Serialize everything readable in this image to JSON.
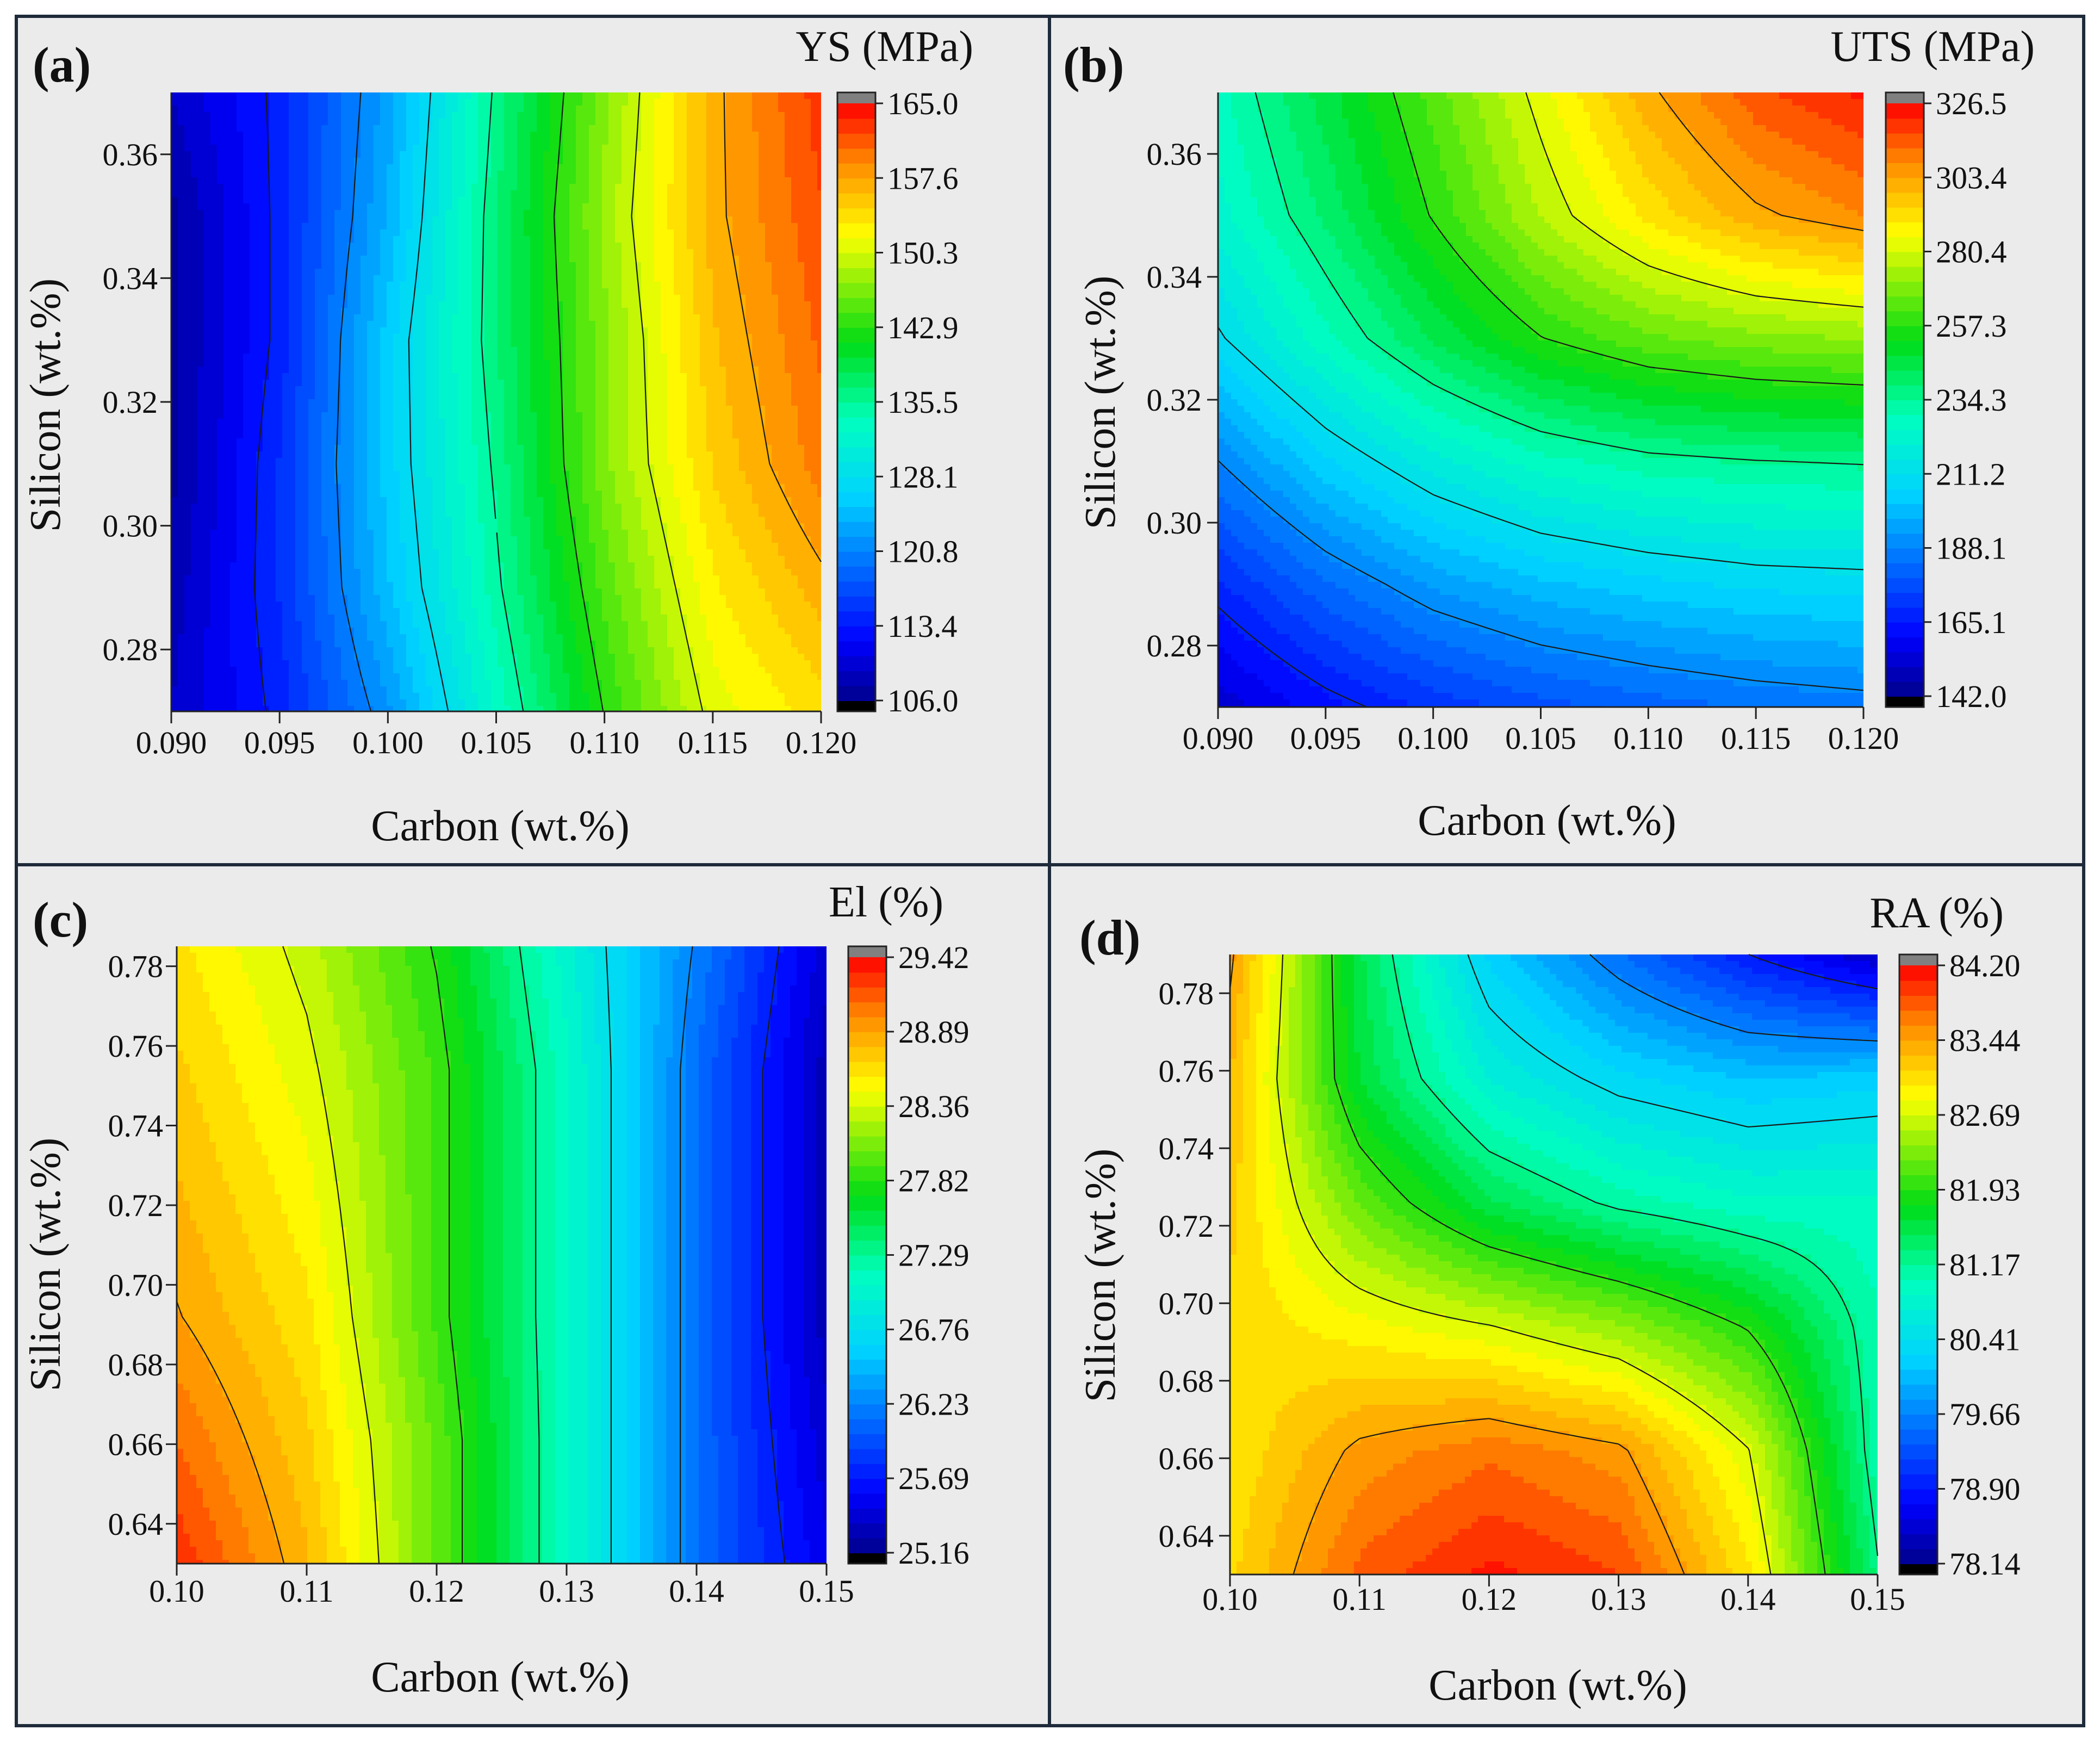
{
  "figure": {
    "panels": [
      {
        "id": "a",
        "label": "(a)",
        "title": "YS (MPa)",
        "xlabel": "Carbon (wt.%)",
        "ylabel": "Silicon (wt.%)",
        "x_ticks": [
          "0.090",
          "0.095",
          "0.100",
          "0.105",
          "0.110",
          "0.115",
          "0.120"
        ],
        "y_ticks": [
          "0.28",
          "0.30",
          "0.32",
          "0.34",
          "0.36"
        ],
        "colorbar_ticks": [
          "106.0",
          "113.4",
          "120.8",
          "128.1",
          "135.5",
          "142.9",
          "150.3",
          "157.6",
          "165.0"
        ]
      },
      {
        "id": "b",
        "label": "(b)",
        "title": "UTS (MPa)",
        "xlabel": "Carbon (wt.%)",
        "ylabel": "Silicon (wt.%)",
        "x_ticks": [
          "0.090",
          "0.095",
          "0.100",
          "0.105",
          "0.110",
          "0.115",
          "0.120"
        ],
        "y_ticks": [
          "0.28",
          "0.30",
          "0.32",
          "0.34",
          "0.36"
        ],
        "colorbar_ticks": [
          "142.0",
          "165.1",
          "188.1",
          "211.2",
          "234.3",
          "257.3",
          "280.4",
          "303.4",
          "326.5"
        ]
      },
      {
        "id": "c",
        "label": "(c)",
        "title": "El (%)",
        "xlabel": "Carbon (wt.%)",
        "ylabel": "Silicon (wt.%)",
        "x_ticks": [
          "0.10",
          "0.11",
          "0.12",
          "0.13",
          "0.14",
          "0.15"
        ],
        "y_ticks": [
          "0.64",
          "0.66",
          "0.68",
          "0.70",
          "0.72",
          "0.74",
          "0.76",
          "0.78"
        ],
        "colorbar_ticks": [
          "25.16",
          "25.69",
          "26.23",
          "26.76",
          "27.29",
          "27.82",
          "28.36",
          "28.89",
          "29.42"
        ]
      },
      {
        "id": "d",
        "label": "(d)",
        "title": "RA (%)",
        "xlabel": "Carbon (wt.%)",
        "ylabel": "Silicon (wt.%)",
        "x_ticks": [
          "0.10",
          "0.11",
          "0.12",
          "0.13",
          "0.14",
          "0.15"
        ],
        "y_ticks": [
          "0.64",
          "0.66",
          "0.68",
          "0.70",
          "0.72",
          "0.74",
          "0.76",
          "0.78"
        ],
        "colorbar_ticks": [
          "78.14",
          "78.90",
          "79.66",
          "80.41",
          "81.17",
          "81.93",
          "82.69",
          "83.44",
          "84.20"
        ]
      }
    ]
  },
  "chart_data": [
    {
      "type": "heatmap",
      "subtype": "contour",
      "title": "YS (MPa)",
      "xlabel": "Carbon (wt.%)",
      "ylabel": "Silicon (wt.%)",
      "xlim": [
        0.09,
        0.12
      ],
      "ylim": [
        0.27,
        0.37
      ],
      "zlim": [
        106.0,
        165.0
      ],
      "x": [
        0.09,
        0.095,
        0.1,
        0.105,
        0.11,
        0.115,
        0.12
      ],
      "y": [
        0.27,
        0.29,
        0.31,
        0.33,
        0.35,
        0.37
      ],
      "z": [
        [
          109,
          114,
          122,
          133,
          143,
          151,
          154
        ],
        [
          108,
          115,
          125,
          135,
          145,
          153,
          157
        ],
        [
          107,
          115,
          126,
          136,
          147,
          155,
          160
        ],
        [
          107,
          114,
          126,
          137,
          147,
          156,
          161
        ],
        [
          107,
          114,
          124,
          137,
          148,
          157,
          162
        ],
        [
          109,
          114,
          123,
          136,
          147,
          157,
          163
        ]
      ]
    },
    {
      "type": "heatmap",
      "subtype": "contour",
      "title": "UTS (MPa)",
      "xlabel": "Carbon (wt.%)",
      "ylabel": "Silicon (wt.%)",
      "xlim": [
        0.09,
        0.12
      ],
      "ylim": [
        0.27,
        0.37
      ],
      "zlim": [
        142.0,
        326.5
      ],
      "x": [
        0.09,
        0.095,
        0.1,
        0.105,
        0.11,
        0.115,
        0.12
      ],
      "y": [
        0.27,
        0.29,
        0.31,
        0.33,
        0.35,
        0.37
      ],
      "z": [
        [
          152,
          162,
          170,
          176,
          180,
          183,
          185
        ],
        [
          168,
          182,
          193,
          200,
          204,
          207,
          208
        ],
        [
          188,
          205,
          218,
          227,
          232,
          234,
          235
        ],
        [
          210,
          228,
          244,
          257,
          265,
          269,
          271
        ],
        [
          223,
          240,
          258,
          276,
          291,
          302,
          308
        ],
        [
          228,
          246,
          264,
          283,
          302,
          316,
          323
        ]
      ]
    },
    {
      "type": "heatmap",
      "subtype": "contour",
      "title": "El (%)",
      "xlabel": "Carbon (wt.%)",
      "ylabel": "Silicon (wt.%)",
      "xlim": [
        0.1,
        0.15
      ],
      "ylim": [
        0.63,
        0.785
      ],
      "zlim": [
        25.16,
        29.42
      ],
      "x": [
        0.1,
        0.11,
        0.12,
        0.13,
        0.14,
        0.15
      ],
      "y": [
        0.63,
        0.66,
        0.69,
        0.72,
        0.75,
        0.785
      ],
      "z": [
        [
          29.3,
          28.8,
          28.0,
          27.1,
          26.1,
          25.5
        ],
        [
          29.1,
          28.7,
          28.0,
          27.1,
          26.1,
          25.4
        ],
        [
          28.9,
          28.6,
          27.9,
          27.1,
          26.1,
          25.3
        ],
        [
          28.8,
          28.5,
          27.9,
          27.1,
          26.1,
          25.3
        ],
        [
          28.7,
          28.4,
          27.9,
          27.1,
          26.1,
          25.3
        ],
        [
          28.6,
          28.3,
          27.8,
          27.0,
          26.2,
          25.4
        ]
      ]
    },
    {
      "type": "heatmap",
      "subtype": "contour",
      "title": "RA (%)",
      "xlabel": "Carbon (wt.%)",
      "ylabel": "Silicon (wt.%)",
      "xlim": [
        0.1,
        0.15
      ],
      "ylim": [
        0.63,
        0.79
      ],
      "zlim": [
        78.14,
        84.2
      ],
      "x": [
        0.1,
        0.11,
        0.12,
        0.13,
        0.14,
        0.15
      ],
      "y": [
        0.63,
        0.66,
        0.69,
        0.72,
        0.75,
        0.79
      ],
      "z": [
        [
          83.1,
          83.8,
          84.1,
          83.9,
          83.0,
          81.2
        ],
        [
          83.0,
          83.5,
          83.7,
          83.5,
          82.7,
          81.0
        ],
        [
          83.1,
          82.9,
          82.7,
          82.4,
          81.9,
          81.0
        ],
        [
          83.2,
          82.2,
          81.5,
          81.1,
          80.9,
          80.9
        ],
        [
          83.3,
          81.6,
          80.7,
          80.3,
          80.1,
          80.2
        ],
        [
          83.5,
          81.5,
          80.2,
          79.5,
          78.9,
          78.4
        ]
      ]
    }
  ]
}
